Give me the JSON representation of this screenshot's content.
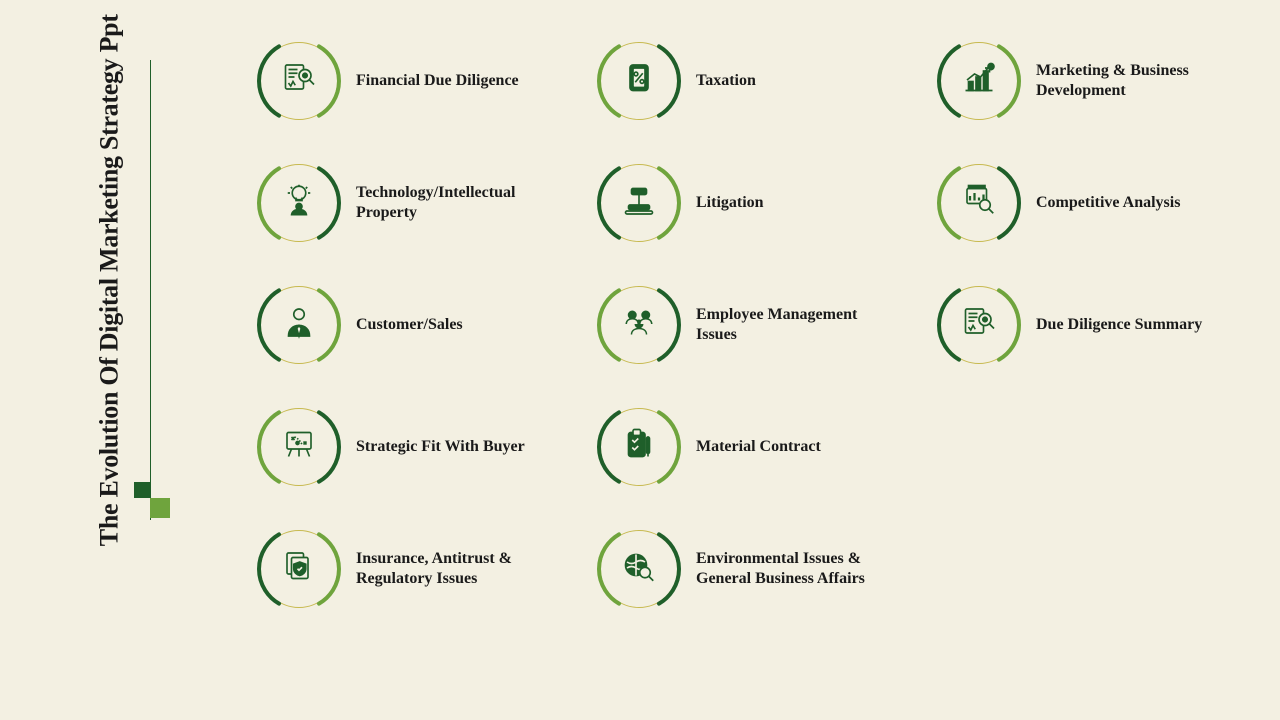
{
  "slide": {
    "title": "The Evolution Of Digital Marketing Strategy Ppt",
    "background_color": "#f3f0e2",
    "text_color": "#1a1a1a",
    "accent_dark": "#1f5f2a",
    "accent_light": "#6fa43d",
    "ring_color": "#c7b94f",
    "title_fontsize": 26,
    "label_fontsize": 16,
    "icon_size": 36,
    "badge_diameter": 78,
    "arc_stroke_width": 4,
    "columns": [
      {
        "items": [
          {
            "label": "Financial Due Diligence",
            "icon": "document-magnify",
            "arc_color_left": "#1f5f2a",
            "arc_color_right": "#6fa43d"
          },
          {
            "label": "Technology/Intellectual Property",
            "icon": "lightbulb-person",
            "arc_color_left": "#6fa43d",
            "arc_color_right": "#1f5f2a"
          },
          {
            "label": "Customer/Sales",
            "icon": "person-tie",
            "arc_color_left": "#1f5f2a",
            "arc_color_right": "#6fa43d"
          },
          {
            "label": "Strategic Fit With Buyer",
            "icon": "strategy-board",
            "arc_color_left": "#6fa43d",
            "arc_color_right": "#1f5f2a"
          },
          {
            "label": "Insurance, Antitrust & Regulatory Issues",
            "icon": "shield-doc",
            "arc_color_left": "#1f5f2a",
            "arc_color_right": "#6fa43d"
          }
        ]
      },
      {
        "items": [
          {
            "label": "Taxation",
            "icon": "percent-doc",
            "arc_color_left": "#6fa43d",
            "arc_color_right": "#1f5f2a"
          },
          {
            "label": "Litigation",
            "icon": "gavel",
            "arc_color_left": "#1f5f2a",
            "arc_color_right": "#6fa43d"
          },
          {
            "label": "Employee Management Issues",
            "icon": "people-group",
            "arc_color_left": "#6fa43d",
            "arc_color_right": "#1f5f2a"
          },
          {
            "label": "Material Contract",
            "icon": "clipboard-check",
            "arc_color_left": "#1f5f2a",
            "arc_color_right": "#6fa43d"
          },
          {
            "label": "Environmental Issues & General Business Affairs",
            "icon": "globe-magnify",
            "arc_color_left": "#6fa43d",
            "arc_color_right": "#1f5f2a"
          }
        ]
      },
      {
        "items": [
          {
            "label": "Marketing & Business Development",
            "icon": "growth-chart",
            "arc_color_left": "#1f5f2a",
            "arc_color_right": "#6fa43d"
          },
          {
            "label": "Competitive Analysis",
            "icon": "chart-magnify",
            "arc_color_left": "#6fa43d",
            "arc_color_right": "#1f5f2a"
          },
          {
            "label": "Due Diligence Summary",
            "icon": "document-magnify",
            "arc_color_left": "#1f5f2a",
            "arc_color_right": "#6fa43d"
          }
        ]
      }
    ]
  }
}
